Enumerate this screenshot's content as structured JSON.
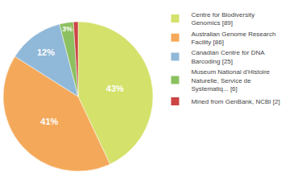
{
  "chart_data": {
    "type": "pie",
    "categories": [
      "Centre for Biodiversity\nGenomics [89]",
      "Australian Genome Research\nFacility [86]",
      "Canadian Centre for DNA\nBarcoding [25]",
      "Museum National d'Histoire\nNaturelle, Service de\nSystematiq... [6]",
      "Mined from GenBank, NCBI [2]"
    ],
    "values": [
      43,
      41,
      12,
      3,
      1
    ],
    "value_labels": [
      "43%",
      "41%",
      "12%",
      "3%",
      null
    ],
    "colors": [
      "#d4e16a",
      "#f4a95a",
      "#90b8d8",
      "#8dc060",
      "#cc4444"
    ],
    "data_labels": true,
    "legend": "right"
  }
}
